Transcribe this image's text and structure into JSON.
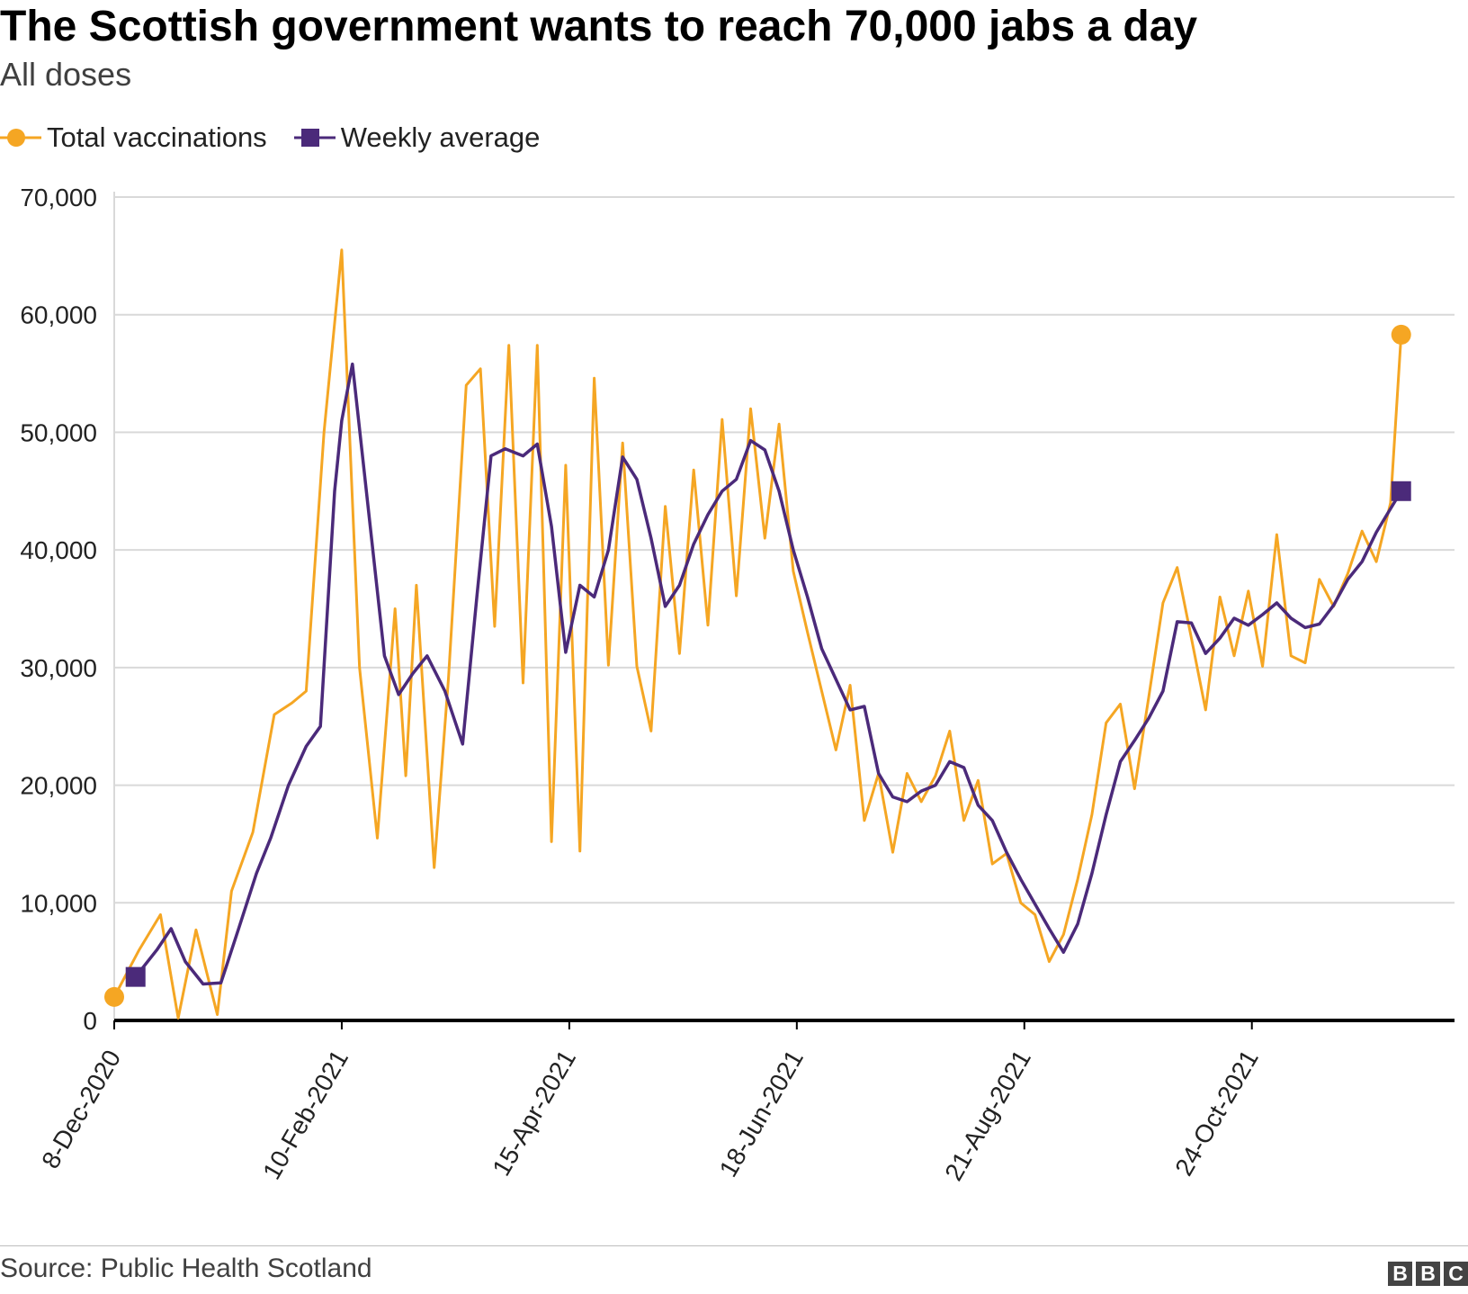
{
  "title": "The Scottish government wants to reach 70,000 jabs a day",
  "subtitle": "All doses",
  "source": "Source: Public Health Scotland",
  "logo_letters": [
    "B",
    "B",
    "C"
  ],
  "colors": {
    "total": "#f5a623",
    "weekly": "#4b2a7a",
    "grid": "#d9d9d9",
    "baseline": "#000000"
  },
  "legend": [
    {
      "label": "Total vaccinations",
      "marker": "circle",
      "color": "#f5a623"
    },
    {
      "label": "Weekly average",
      "marker": "square",
      "color": "#4b2a7a"
    }
  ],
  "chart_data": {
    "type": "line",
    "title": "The Scottish government wants to reach 70,000 jabs a day",
    "subtitle": "All doses",
    "xlabel": "",
    "ylabel": "",
    "x_start": "8-Dec-2020",
    "x_end": "20-Dec-2021",
    "x_ticks": [
      "8-Dec-2020",
      "10-Feb-2021",
      "15-Apr-2021",
      "18-Jun-2021",
      "21-Aug-2021",
      "24-Oct-2021"
    ],
    "ylim": [
      0,
      70000
    ],
    "y_ticks": [
      0,
      10000,
      20000,
      30000,
      40000,
      50000,
      60000,
      70000
    ],
    "grid": true,
    "legend_position": "top-left",
    "series": [
      {
        "name": "Total vaccinations",
        "color": "#f5a623",
        "marker_last": "circle",
        "points": [
          [
            "8-Dec-2020",
            2000
          ],
          [
            "15-Dec-2020",
            6000
          ],
          [
            "21-Dec-2020",
            9000
          ],
          [
            "26-Dec-2020",
            200
          ],
          [
            "31-Dec-2020",
            7700
          ],
          [
            "6-Jan-2021",
            500
          ],
          [
            "10-Jan-2021",
            11000
          ],
          [
            "16-Jan-2021",
            16000
          ],
          [
            "22-Jan-2021",
            26000
          ],
          [
            "27-Jan-2021",
            27000
          ],
          [
            "31-Jan-2021",
            28000
          ],
          [
            "5-Feb-2021",
            50000
          ],
          [
            "10-Feb-2021",
            65500
          ],
          [
            "15-Feb-2021",
            30000
          ],
          [
            "20-Feb-2021",
            15500
          ],
          [
            "25-Feb-2021",
            35000
          ],
          [
            "28-Feb-2021",
            20800
          ],
          [
            "3-Mar-2021",
            37000
          ],
          [
            "8-Mar-2021",
            13000
          ],
          [
            "12-Mar-2021",
            29000
          ],
          [
            "17-Mar-2021",
            54000
          ],
          [
            "21-Mar-2021",
            55400
          ],
          [
            "25-Mar-2021",
            33500
          ],
          [
            "29-Mar-2021",
            57400
          ],
          [
            "2-Apr-2021",
            28700
          ],
          [
            "6-Apr-2021",
            57400
          ],
          [
            "10-Apr-2021",
            15200
          ],
          [
            "14-Apr-2021",
            47200
          ],
          [
            "18-Apr-2021",
            14400
          ],
          [
            "22-Apr-2021",
            54600
          ],
          [
            "26-Apr-2021",
            30200
          ],
          [
            "30-Apr-2021",
            49100
          ],
          [
            "4-May-2021",
            30100
          ],
          [
            "8-May-2021",
            24600
          ],
          [
            "12-May-2021",
            43700
          ],
          [
            "16-May-2021",
            31200
          ],
          [
            "20-May-2021",
            46800
          ],
          [
            "24-May-2021",
            33600
          ],
          [
            "28-May-2021",
            51100
          ],
          [
            "1-Jun-2021",
            36100
          ],
          [
            "5-Jun-2021",
            52000
          ],
          [
            "9-Jun-2021",
            41000
          ],
          [
            "13-Jun-2021",
            50700
          ],
          [
            "17-Jun-2021",
            38200
          ],
          [
            "21-Jun-2021",
            33000
          ],
          [
            "25-Jun-2021",
            28000
          ],
          [
            "29-Jun-2021",
            23000
          ],
          [
            "3-Jul-2021",
            28500
          ],
          [
            "7-Jul-2021",
            17000
          ],
          [
            "11-Jul-2021",
            21000
          ],
          [
            "15-Jul-2021",
            14300
          ],
          [
            "19-Jul-2021",
            21000
          ],
          [
            "23-Jul-2021",
            18600
          ],
          [
            "27-Jul-2021",
            20800
          ],
          [
            "31-Jul-2021",
            24600
          ],
          [
            "4-Aug-2021",
            17000
          ],
          [
            "8-Aug-2021",
            20400
          ],
          [
            "12-Aug-2021",
            13300
          ],
          [
            "16-Aug-2021",
            14200
          ],
          [
            "20-Aug-2021",
            10000
          ],
          [
            "24-Aug-2021",
            9000
          ],
          [
            "28-Aug-2021",
            5000
          ],
          [
            "1-Sep-2021",
            7300
          ],
          [
            "5-Sep-2021",
            12000
          ],
          [
            "9-Sep-2021",
            17500
          ],
          [
            "13-Sep-2021",
            25300
          ],
          [
            "17-Sep-2021",
            26900
          ],
          [
            "21-Sep-2021",
            19700
          ],
          [
            "25-Sep-2021",
            27500
          ],
          [
            "29-Sep-2021",
            35500
          ],
          [
            "3-Oct-2021",
            38500
          ],
          [
            "7-Oct-2021",
            32500
          ],
          [
            "11-Oct-2021",
            26400
          ],
          [
            "15-Oct-2021",
            36000
          ],
          [
            "19-Oct-2021",
            31000
          ],
          [
            "23-Oct-2021",
            36500
          ],
          [
            "27-Oct-2021",
            30100
          ],
          [
            "31-Oct-2021",
            41300
          ],
          [
            "4-Nov-2021",
            31000
          ],
          [
            "8-Nov-2021",
            30400
          ],
          [
            "12-Nov-2021",
            37500
          ],
          [
            "16-Nov-2021",
            35200
          ],
          [
            "20-Nov-2021",
            38000
          ],
          [
            "24-Nov-2021",
            41600
          ],
          [
            "28-Nov-2021",
            39000
          ],
          [
            "2-Dec-2021",
            44000
          ],
          [
            "5-Dec-2021",
            58300
          ]
        ]
      },
      {
        "name": "Weekly average",
        "color": "#4b2a7a",
        "marker_last": "square",
        "points": [
          [
            "14-Dec-2020",
            3700
          ],
          [
            "20-Dec-2020",
            6000
          ],
          [
            "24-Dec-2020",
            7800
          ],
          [
            "28-Dec-2020",
            5000
          ],
          [
            "2-Jan-2021",
            3100
          ],
          [
            "7-Jan-2021",
            3200
          ],
          [
            "12-Jan-2021",
            7800
          ],
          [
            "17-Jan-2021",
            12500
          ],
          [
            "21-Jan-2021",
            15500
          ],
          [
            "26-Jan-2021",
            20000
          ],
          [
            "31-Jan-2021",
            23300
          ],
          [
            "4-Feb-2021",
            25000
          ],
          [
            "8-Feb-2021",
            45000
          ],
          [
            "10-Feb-2021",
            51000
          ],
          [
            "13-Feb-2021",
            55800
          ],
          [
            "18-Feb-2021",
            42000
          ],
          [
            "22-Feb-2021",
            31000
          ],
          [
            "26-Feb-2021",
            27700
          ],
          [
            "2-Mar-2021",
            29500
          ],
          [
            "6-Mar-2021",
            31000
          ],
          [
            "11-Mar-2021",
            28000
          ],
          [
            "16-Mar-2021",
            23500
          ],
          [
            "20-Mar-2021",
            36000
          ],
          [
            "24-Mar-2021",
            48000
          ],
          [
            "28-Mar-2021",
            48600
          ],
          [
            "2-Apr-2021",
            48000
          ],
          [
            "6-Apr-2021",
            49000
          ],
          [
            "10-Apr-2021",
            42000
          ],
          [
            "14-Apr-2021",
            31300
          ],
          [
            "18-Apr-2021",
            37000
          ],
          [
            "22-Apr-2021",
            36000
          ],
          [
            "26-Apr-2021",
            40000
          ],
          [
            "30-Apr-2021",
            47900
          ],
          [
            "4-May-2021",
            46000
          ],
          [
            "8-May-2021",
            41000
          ],
          [
            "12-May-2021",
            35200
          ],
          [
            "16-May-2021",
            37000
          ],
          [
            "20-May-2021",
            40500
          ],
          [
            "24-May-2021",
            43000
          ],
          [
            "28-May-2021",
            45000
          ],
          [
            "1-Jun-2021",
            46000
          ],
          [
            "5-Jun-2021",
            49300
          ],
          [
            "9-Jun-2021",
            48500
          ],
          [
            "13-Jun-2021",
            45000
          ],
          [
            "17-Jun-2021",
            40000
          ],
          [
            "21-Jun-2021",
            36000
          ],
          [
            "25-Jun-2021",
            31600
          ],
          [
            "29-Jun-2021",
            29000
          ],
          [
            "3-Jul-2021",
            26400
          ],
          [
            "7-Jul-2021",
            26700
          ],
          [
            "11-Jul-2021",
            21000
          ],
          [
            "15-Jul-2021",
            19000
          ],
          [
            "19-Jul-2021",
            18600
          ],
          [
            "23-Jul-2021",
            19500
          ],
          [
            "27-Jul-2021",
            20000
          ],
          [
            "31-Jul-2021",
            22000
          ],
          [
            "4-Aug-2021",
            21500
          ],
          [
            "8-Aug-2021",
            18300
          ],
          [
            "12-Aug-2021",
            17000
          ],
          [
            "16-Aug-2021",
            14300
          ],
          [
            "20-Aug-2021",
            12000
          ],
          [
            "24-Aug-2021",
            9900
          ],
          [
            "28-Aug-2021",
            7800
          ],
          [
            "1-Sep-2021",
            5800
          ],
          [
            "5-Sep-2021",
            8200
          ],
          [
            "9-Sep-2021",
            12500
          ],
          [
            "13-Sep-2021",
            17500
          ],
          [
            "17-Sep-2021",
            22000
          ],
          [
            "21-Sep-2021",
            23800
          ],
          [
            "25-Sep-2021",
            25700
          ],
          [
            "29-Sep-2021",
            28000
          ],
          [
            "3-Oct-2021",
            33900
          ],
          [
            "7-Oct-2021",
            33800
          ],
          [
            "11-Oct-2021",
            31200
          ],
          [
            "15-Oct-2021",
            32500
          ],
          [
            "19-Oct-2021",
            34200
          ],
          [
            "23-Oct-2021",
            33600
          ],
          [
            "27-Oct-2021",
            34500
          ],
          [
            "31-Oct-2021",
            35500
          ],
          [
            "4-Nov-2021",
            34200
          ],
          [
            "8-Nov-2021",
            33400
          ],
          [
            "12-Nov-2021",
            33700
          ],
          [
            "16-Nov-2021",
            35300
          ],
          [
            "20-Nov-2021",
            37500
          ],
          [
            "24-Nov-2021",
            39000
          ],
          [
            "28-Nov-2021",
            41500
          ],
          [
            "1-Dec-2021",
            43000
          ],
          [
            "5-Dec-2021",
            45000
          ]
        ]
      }
    ]
  }
}
